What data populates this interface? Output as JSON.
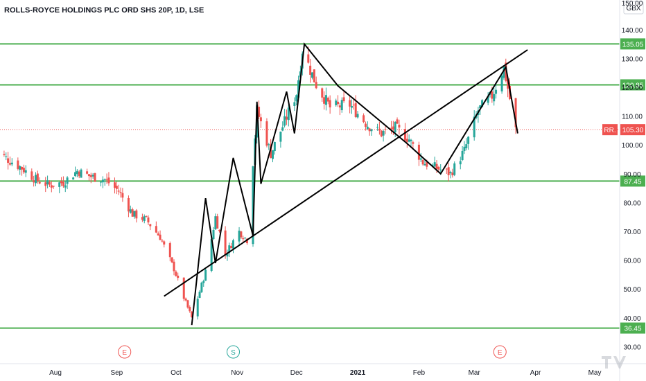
{
  "chart_data": {
    "type": "candlestick",
    "title": "ROLLS-ROYCE HOLDINGS PLC ORD SHS 20P, 1D, LSE",
    "currency": "GBX",
    "ylim": [
      25,
      150
    ],
    "y_ticks": [
      "140.00",
      "130.00",
      "120.00",
      "110.00",
      "100.00",
      "90.00",
      "80.00",
      "70.00",
      "60.00",
      "50.00",
      "40.00",
      "30.00"
    ],
    "x_ticks": [
      {
        "label": "Aug",
        "bold": false
      },
      {
        "label": "Sep",
        "bold": false
      },
      {
        "label": "Oct",
        "bold": false
      },
      {
        "label": "Nov",
        "bold": false
      },
      {
        "label": "Dec",
        "bold": false
      },
      {
        "label": "2021",
        "bold": true
      },
      {
        "label": "Feb",
        "bold": false
      },
      {
        "label": "Mar",
        "bold": false
      },
      {
        "label": "Apr",
        "bold": false
      },
      {
        "label": "May",
        "bold": false
      }
    ],
    "horizontal_levels": [
      {
        "value": 135.05,
        "label": "135.05"
      },
      {
        "value": 120.85,
        "label": "120.85"
      },
      {
        "value": 87.45,
        "label": "87.45"
      },
      {
        "value": 36.45,
        "label": "36.45"
      }
    ],
    "current_price": {
      "value": 105.3,
      "label": "105.30",
      "symbol": "RR."
    },
    "events": [
      {
        "letter": "E",
        "date": "Sep 2020",
        "color": "#ef5350"
      },
      {
        "letter": "S",
        "date": "Nov 2020",
        "color": "#26a69a"
      },
      {
        "letter": "E",
        "date": "Mar 2021",
        "color": "#ef5350"
      }
    ],
    "price_path": [
      {
        "date": "2020-07-01",
        "close": 98
      },
      {
        "date": "2020-07-08",
        "close": 95
      },
      {
        "date": "2020-07-15",
        "close": 92
      },
      {
        "date": "2020-07-22",
        "close": 88
      },
      {
        "date": "2020-07-29",
        "close": 86
      },
      {
        "date": "2020-08-05",
        "close": 87
      },
      {
        "date": "2020-08-12",
        "close": 91
      },
      {
        "date": "2020-08-19",
        "close": 89
      },
      {
        "date": "2020-08-26",
        "close": 88
      },
      {
        "date": "2020-09-02",
        "close": 84
      },
      {
        "date": "2020-09-09",
        "close": 76
      },
      {
        "date": "2020-09-16",
        "close": 74
      },
      {
        "date": "2020-09-23",
        "close": 68
      },
      {
        "date": "2020-09-30",
        "close": 57
      },
      {
        "date": "2020-10-05",
        "close": 47
      },
      {
        "date": "2020-10-09",
        "close": 40
      },
      {
        "date": "2020-10-16",
        "close": 56
      },
      {
        "date": "2020-10-21",
        "close": 75
      },
      {
        "date": "2020-10-26",
        "close": 62
      },
      {
        "date": "2020-11-02",
        "close": 70
      },
      {
        "date": "2020-11-06",
        "close": 67
      },
      {
        "date": "2020-11-11",
        "close": 112
      },
      {
        "date": "2020-11-18",
        "close": 97
      },
      {
        "date": "2020-11-25",
        "close": 108
      },
      {
        "date": "2020-12-01",
        "close": 118
      },
      {
        "date": "2020-12-04",
        "close": 133
      },
      {
        "date": "2020-12-11",
        "close": 121
      },
      {
        "date": "2020-12-18",
        "close": 113
      },
      {
        "date": "2020-12-28",
        "close": 114
      },
      {
        "date": "2021-01-06",
        "close": 107
      },
      {
        "date": "2021-01-13",
        "close": 104
      },
      {
        "date": "2021-01-20",
        "close": 106
      },
      {
        "date": "2021-01-27",
        "close": 102
      },
      {
        "date": "2021-02-03",
        "close": 94
      },
      {
        "date": "2021-02-10",
        "close": 92
      },
      {
        "date": "2021-02-17",
        "close": 90
      },
      {
        "date": "2021-02-24",
        "close": 98
      },
      {
        "date": "2021-03-03",
        "close": 112
      },
      {
        "date": "2021-03-10",
        "close": 117
      },
      {
        "date": "2021-03-16",
        "close": 127
      },
      {
        "date": "2021-03-19",
        "close": 116
      },
      {
        "date": "2021-03-22",
        "close": 105.3
      }
    ],
    "trendlines": [
      {
        "name": "rising-support",
        "points": [
          {
            "date": "2020-09-25",
            "value": 47.5
          },
          {
            "date": "2021-03-28",
            "value": 133
          }
        ]
      },
      {
        "name": "zigzag-pattern",
        "points": [
          {
            "date": "2020-10-09",
            "value": 37.5
          },
          {
            "date": "2020-10-16",
            "value": 81.5
          },
          {
            "date": "2020-10-21",
            "value": 59
          },
          {
            "date": "2020-10-30",
            "value": 95.5
          },
          {
            "date": "2020-11-09",
            "value": 68.5
          },
          {
            "date": "2020-11-11",
            "value": 115
          },
          {
            "date": "2020-11-13",
            "value": 86.5
          },
          {
            "date": "2020-11-26",
            "value": 118.5
          },
          {
            "date": "2020-11-30",
            "value": 104
          },
          {
            "date": "2020-12-05",
            "value": 135
          },
          {
            "date": "2020-12-22",
            "value": 120.5
          },
          {
            "date": "2021-01-26",
            "value": 100.5
          },
          {
            "date": "2021-02-12",
            "value": 90
          },
          {
            "date": "2021-03-17",
            "value": 127
          },
          {
            "date": "2021-03-23",
            "value": 104
          }
        ]
      }
    ],
    "grid": false,
    "watermark": "TV"
  }
}
